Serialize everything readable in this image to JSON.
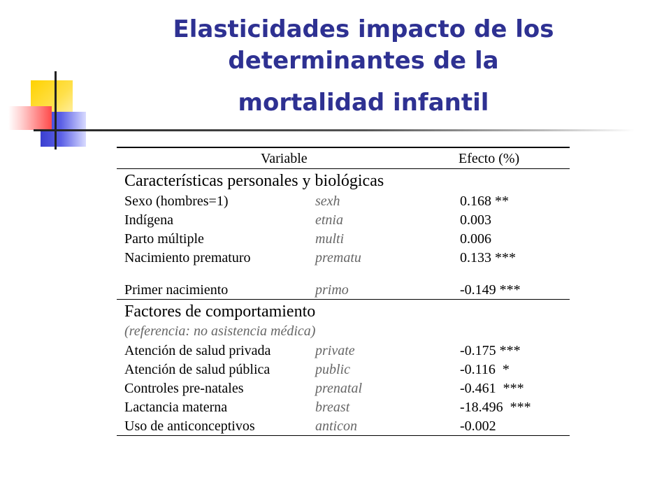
{
  "title": {
    "line1": "Elasticidades impacto de los",
    "line2": "determinantes de la",
    "line3": "mortalidad infantil"
  },
  "table": {
    "headers": {
      "variable": "Variable",
      "effect": "Efecto (%)"
    },
    "section1": {
      "title": "Características personales y biológicas",
      "rows": [
        {
          "label": "Sexo (hombres=1)",
          "var": "sexh",
          "value": "0.168 **"
        },
        {
          "label": "Indígena",
          "var": "etnia",
          "value": "0.003"
        },
        {
          "label": "Parto múltiple",
          "var": "multi",
          "value": "0.006"
        },
        {
          "label": "Nacimiento prematuro",
          "var": "prematu",
          "value": "0.133 ***"
        },
        {
          "label": "Primer nacimiento",
          "var": "primo",
          "value": "-0.149 ***"
        }
      ]
    },
    "section2": {
      "title": "Factores de comportamiento",
      "note": "(referencia: no asistencia médica)",
      "rows": [
        {
          "label": "Atención de salud privada",
          "var": "private",
          "value": "-0.175 ***"
        },
        {
          "label": "Atención de salud pública",
          "var": "public",
          "value": "-0.116  *"
        },
        {
          "label": "Controles pre-natales",
          "var": "prenatal",
          "value": "-0.461  ***"
        },
        {
          "label": "Lactancia materna",
          "var": "breast",
          "value": "-18.496  ***"
        },
        {
          "label": "Uso de anticonceptivos",
          "var": "anticon",
          "value": "-0.002"
        }
      ]
    }
  }
}
